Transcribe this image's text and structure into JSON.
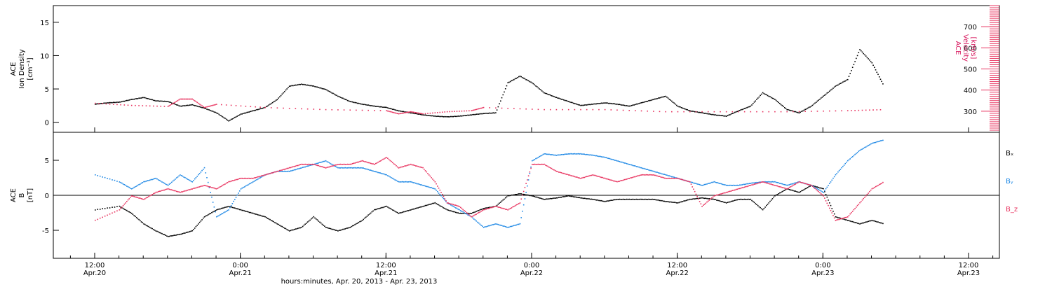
{
  "colors": {
    "black": "#000000",
    "blue": "#1e88e5",
    "pink": "#e8335f"
  },
  "chart_data": [
    {
      "type": "scatter",
      "panel": "top",
      "ylabel_lines": [
        "ACE",
        "Ion Density",
        "[cm⁻³]"
      ],
      "ylim": [
        -1.5,
        17.5
      ],
      "yticks": [
        0,
        5,
        10,
        15
      ],
      "right_ylabel_lines": [
        "ACE",
        "Velocity",
        "[km/s]"
      ],
      "right_ylim": [
        200,
        800
      ],
      "right_yticks": [
        300,
        400,
        500,
        600,
        700
      ],
      "grid": false,
      "series": [
        {
          "color": "black",
          "axis": "left",
          "x": [
            -2,
            0,
            2,
            4,
            6,
            8,
            10,
            12,
            14,
            16,
            18,
            20,
            22,
            24,
            26,
            28,
            30,
            32,
            34,
            36,
            38,
            40,
            42,
            44,
            46,
            48,
            50,
            52,
            54,
            56,
            58,
            60,
            62,
            64,
            66,
            68,
            70,
            72,
            74,
            76,
            78,
            80,
            82,
            84,
            86,
            88,
            90,
            92,
            94,
            96,
            98,
            100,
            102,
            104,
            106,
            108,
            110,
            112,
            114,
            116,
            118,
            120,
            122,
            124,
            126,
            128
          ],
          "y": [
            2.8,
            3,
            3.1,
            3.5,
            3.8,
            3.3,
            3.2,
            2.5,
            2.7,
            2.2,
            1.5,
            0.3,
            1.3,
            1.8,
            2.3,
            3.5,
            5.5,
            5.8,
            5.5,
            5,
            4,
            3.2,
            2.8,
            2.5,
            2.3,
            1.8,
            1.5,
            1.2,
            1,
            0.9,
            1,
            1.2,
            1.4,
            1.5,
            6,
            7,
            6,
            4.5,
            3.8,
            3.2,
            2.6,
            2.8,
            3,
            2.8,
            2.5,
            3,
            3.5,
            4,
            2.5,
            1.8,
            1.5,
            1.2,
            1,
            1.8,
            2.5,
            4.5,
            3.5,
            2,
            1.5,
            2.5,
            4,
            5.5,
            6.5,
            11,
            9,
            5.5
          ]
        },
        {
          "color": "pink",
          "axis": "right",
          "x": [
            -2,
            4,
            10,
            12,
            14,
            16,
            18,
            26,
            36,
            46,
            48,
            50,
            52,
            56,
            60,
            62,
            72,
            82,
            92,
            102,
            112,
            122,
            128
          ],
          "y": [
            340,
            330,
            325,
            360,
            360,
            320,
            335,
            320,
            310,
            305,
            290,
            300,
            290,
            300,
            305,
            320,
            310,
            310,
            300,
            300,
            300,
            305,
            310
          ]
        }
      ]
    },
    {
      "type": "scatter",
      "panel": "bottom",
      "ylabel_lines": [
        "ACE",
        "B",
        "[nT]"
      ],
      "ylim": [
        -9,
        9
      ],
      "yticks": [
        -5,
        0,
        5
      ],
      "zero_line": true,
      "grid": false,
      "series": [
        {
          "name": "Bₓ",
          "color": "black",
          "x": [
            -2,
            2,
            4,
            6,
            8,
            10,
            12,
            14,
            16,
            18,
            20,
            22,
            24,
            26,
            28,
            30,
            32,
            34,
            36,
            38,
            40,
            42,
            44,
            46,
            48,
            50,
            52,
            54,
            56,
            58,
            60,
            62,
            64,
            66,
            68,
            70,
            72,
            74,
            76,
            78,
            80,
            82,
            84,
            86,
            88,
            90,
            92,
            94,
            96,
            98,
            100,
            102,
            104,
            106,
            108,
            110,
            112,
            114,
            116,
            118,
            120,
            122,
            124,
            126,
            128
          ],
          "y": [
            -2,
            -1.5,
            -2.5,
            -4,
            -5,
            -5.8,
            -5.5,
            -5,
            -3,
            -2,
            -1.5,
            -2,
            -2.5,
            -3,
            -4,
            -5,
            -4.5,
            -3,
            -4.5,
            -5,
            -4.5,
            -3.5,
            -2,
            -1.5,
            -2.5,
            -2,
            -1.5,
            -1,
            -2,
            -2.5,
            -2.5,
            -1.8,
            -1.5,
            0,
            0.3,
            0,
            -0.5,
            -0.3,
            0,
            -0.3,
            -0.5,
            -0.8,
            -0.5,
            -0.5,
            -0.5,
            -0.5,
            -0.8,
            -1,
            -0.5,
            -0.3,
            -0.5,
            -1,
            -0.5,
            -0.5,
            -2,
            0,
            1,
            0.5,
            1.5,
            1,
            -3,
            -3.5,
            -4,
            -3.5,
            -4
          ]
        },
        {
          "name": "Bᵧ",
          "color": "blue",
          "x": [
            -2,
            2,
            4,
            6,
            8,
            10,
            12,
            14,
            16,
            18,
            20,
            22,
            24,
            26,
            28,
            30,
            32,
            34,
            36,
            38,
            40,
            42,
            44,
            46,
            48,
            50,
            52,
            54,
            56,
            58,
            60,
            62,
            64,
            66,
            68,
            70,
            72,
            74,
            76,
            78,
            80,
            82,
            84,
            86,
            88,
            90,
            92,
            94,
            96,
            98,
            100,
            102,
            104,
            106,
            108,
            110,
            112,
            114,
            116,
            118,
            120,
            122,
            124,
            126,
            128
          ],
          "y": [
            3,
            2,
            1,
            2,
            2.5,
            1.5,
            3,
            2,
            4,
            -3,
            -2,
            1,
            2,
            3,
            3.5,
            3.5,
            4,
            4.5,
            5,
            4,
            4,
            4,
            3.5,
            3,
            2,
            2,
            1.5,
            1,
            -1,
            -2,
            -3,
            -4.5,
            -4,
            -4.5,
            -4,
            5,
            6,
            5.8,
            6,
            6,
            5.8,
            5.5,
            5,
            4.5,
            4,
            3.5,
            3,
            2.5,
            2,
            1.5,
            2,
            1.5,
            1.5,
            1.8,
            2,
            2,
            1.5,
            2,
            1.5,
            0.5,
            3,
            5,
            6.5,
            7.5,
            8
          ]
        },
        {
          "name": "B_z",
          "color": "pink",
          "x": [
            -2,
            2,
            4,
            6,
            8,
            10,
            12,
            14,
            16,
            18,
            20,
            22,
            24,
            26,
            28,
            30,
            32,
            34,
            36,
            38,
            40,
            42,
            44,
            46,
            48,
            50,
            52,
            54,
            56,
            58,
            60,
            62,
            64,
            66,
            68,
            70,
            72,
            74,
            76,
            78,
            80,
            82,
            84,
            86,
            88,
            90,
            92,
            94,
            96,
            98,
            100,
            102,
            104,
            106,
            108,
            110,
            112,
            114,
            116,
            118,
            120,
            122,
            124,
            126,
            128
          ],
          "y": [
            -3.5,
            -2,
            0,
            -0.5,
            0.5,
            1,
            0.5,
            1,
            1.5,
            1,
            2,
            2.5,
            2.5,
            3,
            3.5,
            4,
            4.5,
            4.5,
            4,
            4.5,
            4.5,
            5,
            4.5,
            5.5,
            4,
            4.5,
            4,
            2,
            -1,
            -1.5,
            -3,
            -2,
            -1.5,
            -2,
            -1,
            4.5,
            4.5,
            3.5,
            3,
            2.5,
            3,
            2.5,
            2,
            2.5,
            3,
            3,
            2.5,
            2.5,
            2,
            -1.5,
            0,
            0.5,
            1,
            1.5,
            2,
            1.5,
            1,
            2,
            1.5,
            0,
            -3.5,
            -3,
            -1,
            1,
            2
          ]
        }
      ]
    }
  ],
  "xaxis": {
    "ticks": [
      {
        "t": 0,
        "time": "12:00",
        "date": "Apr.20"
      },
      {
        "t": 12,
        "time": "0:00",
        "date": "Apr.21"
      },
      {
        "t": 24,
        "time": "12:00",
        "date": "Apr.21"
      },
      {
        "t": 36,
        "time": "0:00",
        "date": "Apr.22"
      },
      {
        "t": 48,
        "time": "12:00",
        "date": "Apr.22"
      },
      {
        "t": 60,
        "time": "0:00",
        "date": "Apr.23"
      },
      {
        "t": 72,
        "time": "12:00",
        "date": "Apr.23"
      }
    ],
    "xlabel": "hours:minutes, Apr. 20, 2013 - Apr. 23, 2013"
  }
}
